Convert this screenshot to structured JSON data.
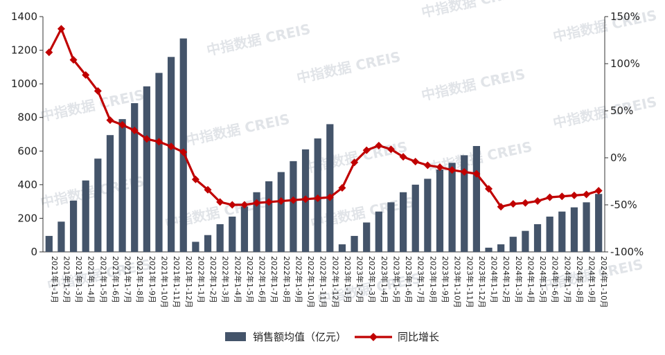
{
  "chart_data": {
    "type": "bar+line",
    "title": "",
    "categories": [
      "2021年1-1月",
      "2021年1-2月",
      "2021年1-3月",
      "2021年1-4月",
      "2021年1-5月",
      "2021年1-6月",
      "2021年1-7月",
      "2021年1-8月",
      "2021年1-9月",
      "2021年1-10月",
      "2021年1-11月",
      "2021年1-12月",
      "2022年1-1月",
      "2022年1-2月",
      "2022年1-3月",
      "2022年1-4月",
      "2022年1-5月",
      "2022年1-6月",
      "2022年1-7月",
      "2022年1-8月",
      "2022年1-9月",
      "2022年1-10月",
      "2022年1-11月",
      "2022年1-12月",
      "2023年1-1月",
      "2023年1-2月",
      "2023年1-3月",
      "2023年1-4月",
      "2023年1-5月",
      "2023年1-6月",
      "2023年1-7月",
      "2023年1-8月",
      "2023年1-9月",
      "2023年1-10月",
      "2023年1-11月",
      "2023年1-12月",
      "2024年1-1月",
      "2024年1-2月",
      "2024年1-3月",
      "2024年1-4月",
      "2024年1-5月",
      "2024年1-6月",
      "2024年1-7月",
      "2024年1-8月",
      "2024年1-9月",
      "2024年1-10月"
    ],
    "series": [
      {
        "name": "销售额均值（亿元）",
        "type": "bar",
        "axis": "left",
        "color": "#44546a",
        "values": [
          95,
          180,
          305,
          425,
          555,
          695,
          790,
          885,
          985,
          1065,
          1160,
          1270,
          60,
          100,
          165,
          210,
          270,
          355,
          420,
          475,
          540,
          610,
          675,
          760,
          45,
          95,
          175,
          240,
          295,
          355,
          400,
          435,
          490,
          530,
          575,
          630,
          25,
          45,
          90,
          125,
          165,
          210,
          240,
          265,
          295,
          345
        ]
      },
      {
        "name": "同比增长",
        "type": "line",
        "axis": "right",
        "color": "#c00000",
        "values": [
          112,
          137,
          104,
          88,
          71,
          40,
          35,
          29,
          20,
          17,
          12,
          6,
          -23,
          -34,
          -47,
          -50,
          -50,
          -48,
          -47,
          -46,
          -45,
          -44,
          -43,
          -42,
          -32,
          -5,
          8,
          13,
          9,
          1,
          -4,
          -8,
          -10,
          -13,
          -15,
          -17,
          -33,
          -52,
          -49,
          -48,
          -46,
          -42,
          -41,
          -40,
          -39,
          -35
        ]
      }
    ],
    "left_axis": {
      "ylim": [
        0,
        1400
      ],
      "ticks": [
        "0",
        "200",
        "400",
        "600",
        "800",
        "1000",
        "1200",
        "1400"
      ]
    },
    "right_axis": {
      "ylim": [
        -100,
        150
      ],
      "ticks": [
        "-100%",
        "-50%",
        "0%",
        "50%",
        "100%",
        "150%"
      ]
    },
    "grid": false,
    "legend_position": "bottom-center"
  },
  "watermark": "中指数据 CREIS"
}
